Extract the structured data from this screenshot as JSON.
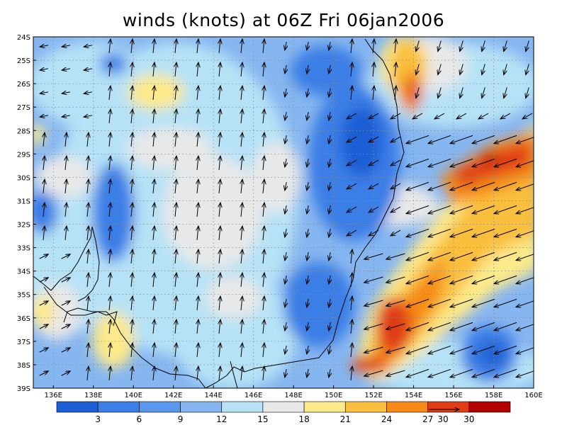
{
  "title": "winds (knots) at 06Z Fri 06jan2006",
  "map": {
    "lat_labels": [
      "24S",
      "25S",
      "26S",
      "27S",
      "28S",
      "29S",
      "30S",
      "31S",
      "32S",
      "33S",
      "34S",
      "35S",
      "36S",
      "37S",
      "38S",
      "39S"
    ],
    "lon_labels": [
      "136E",
      "138E",
      "140E",
      "142E",
      "144E",
      "146E",
      "148E",
      "150E",
      "152E",
      "154E",
      "156E",
      "158E",
      "160E"
    ],
    "lat_range": [
      -39,
      -24
    ],
    "lon_range": [
      135,
      160
    ],
    "grid": true
  },
  "colorbar": {
    "labels": [
      "3",
      "6",
      "9",
      "12",
      "15",
      "18",
      "21",
      "24",
      "27",
      "30"
    ],
    "colors": [
      "#1c5fd4",
      "#3a7ee6",
      "#5a97ee",
      "#86b6f0",
      "#b6e2f6",
      "#e8e8e8",
      "#fce98a",
      "#f9bf3e",
      "#f58a17",
      "#e03d15",
      "#b20000"
    ],
    "vector_key": "30"
  }
}
